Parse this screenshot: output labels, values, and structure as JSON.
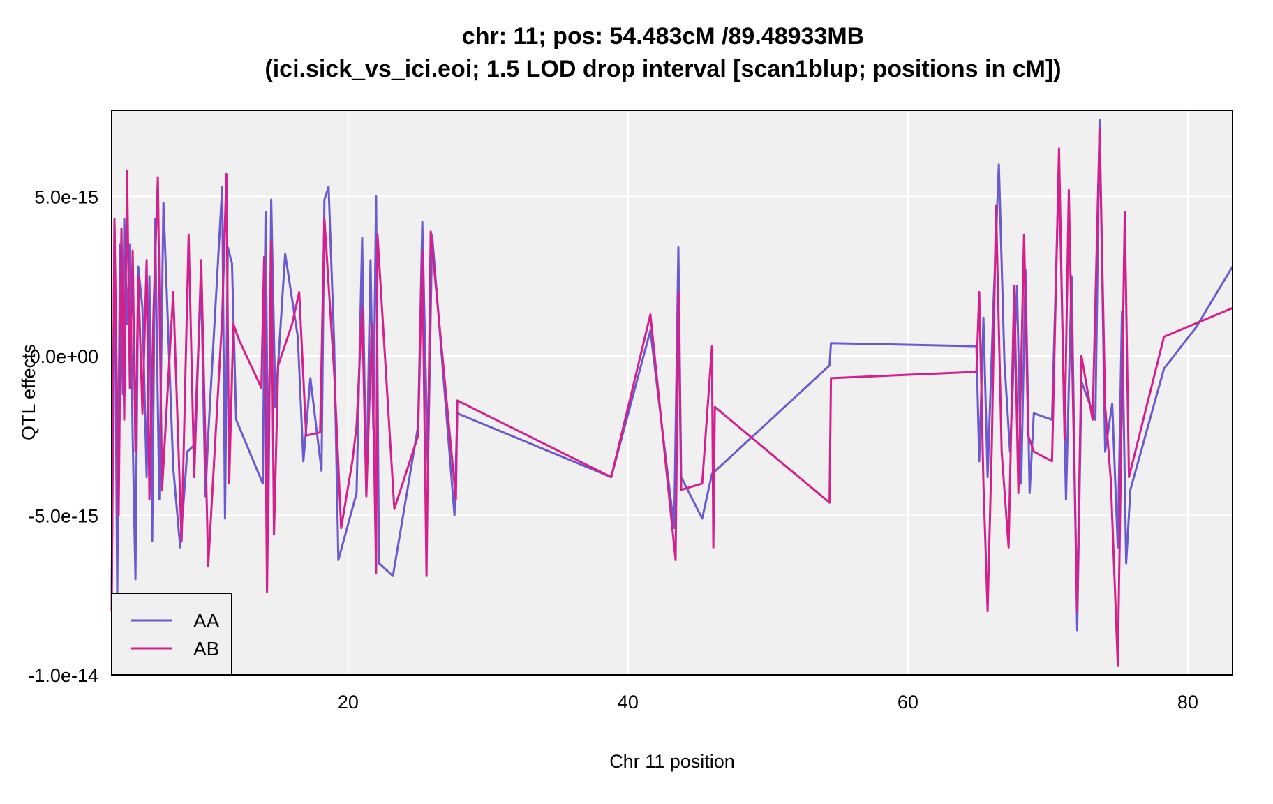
{
  "chart_data": {
    "type": "line",
    "title": "chr: 11; pos: 54.483cM /89.48933MB",
    "subtitle": "(ici.sick_vs_ici.eoi; 1.5 LOD drop interval [scan1blup; positions in cM])",
    "xlabel": "Chr 11 position",
    "ylabel": "QTL effects",
    "xlim": [
      3.1,
      83.2
    ],
    "ylim": [
      -1e-14,
      7.7e-15
    ],
    "x_ticks": [
      20,
      40,
      60,
      80
    ],
    "x_tick_labels": [
      "20",
      "40",
      "60",
      "80"
    ],
    "y_ticks": [
      5e-15,
      0,
      -5e-15,
      -1e-14
    ],
    "y_tick_labels": [
      "5.0e-15",
      "0.0e+00",
      "-5.0e-15",
      "-1.0e-14"
    ],
    "grid": true,
    "background": "#f0f0f0",
    "legend_position": "bottom-left",
    "series": [
      {
        "name": "AA",
        "color": "#6a5acd",
        "points": [
          [
            3.1,
            -7.5e-15
          ],
          [
            3.3,
            4.2e-15
          ],
          [
            3.5,
            -7.5e-15
          ],
          [
            3.7,
            3.5e-15
          ],
          [
            3.9,
            -1.2e-15
          ],
          [
            4.0,
            4.3e-15
          ],
          [
            4.2,
            1e-15
          ],
          [
            4.4,
            3.5e-15
          ],
          [
            4.6,
            -2.5e-15
          ],
          [
            4.8,
            -7e-15
          ],
          [
            5.0,
            2.8e-15
          ],
          [
            5.3,
            1.5e-15
          ],
          [
            5.6,
            -3.8e-15
          ],
          [
            5.8,
            2.5e-15
          ],
          [
            6.0,
            -5.8e-15
          ],
          [
            6.2,
            4.3e-15
          ],
          [
            6.5,
            -4.5e-15
          ],
          [
            6.8,
            4.8e-15
          ],
          [
            7.5,
            -3.5e-15
          ],
          [
            8.0,
            -6e-15
          ],
          [
            8.5,
            -3e-15
          ],
          [
            9.0,
            -2.8e-15
          ],
          [
            9.5,
            2.3e-15
          ],
          [
            9.8,
            -4.4e-15
          ],
          [
            10.0,
            -2.5e-15
          ],
          [
            11.0,
            5.3e-15
          ],
          [
            11.2,
            -5.1e-15
          ],
          [
            11.4,
            3.4e-15
          ],
          [
            11.7,
            2.9e-15
          ],
          [
            12.0,
            -2e-15
          ],
          [
            13.9,
            -4e-15
          ],
          [
            14.1,
            4.5e-15
          ],
          [
            14.3,
            -4.8e-15
          ],
          [
            14.5,
            4.9e-15
          ],
          [
            14.8,
            -1.6e-15
          ],
          [
            15.5,
            3.2e-15
          ],
          [
            16.4,
            6e-16
          ],
          [
            16.8,
            -3.3e-15
          ],
          [
            17.3,
            -7e-16
          ],
          [
            18.1,
            -3.6e-15
          ],
          [
            18.3,
            4.9e-15
          ],
          [
            18.6,
            5.3e-15
          ],
          [
            19.0,
            4e-16
          ],
          [
            19.3,
            -6.4e-15
          ],
          [
            20.6,
            -4.3e-15
          ],
          [
            21.0,
            3.7e-15
          ],
          [
            21.3,
            -4.4e-15
          ],
          [
            21.6,
            3e-15
          ],
          [
            21.8,
            -2.3e-15
          ],
          [
            22.0,
            5e-15
          ],
          [
            22.2,
            -6.5e-15
          ],
          [
            23.2,
            -6.9e-15
          ],
          [
            25.0,
            -2.2e-15
          ],
          [
            25.3,
            4.2e-15
          ],
          [
            25.7,
            -3.6e-15
          ],
          [
            26.0,
            3.8e-15
          ],
          [
            27.6,
            -5e-15
          ],
          [
            27.8,
            -1.8e-15
          ],
          [
            38.8,
            -3.8e-15
          ],
          [
            41.6,
            8e-16
          ],
          [
            43.3,
            -5.4e-15
          ],
          [
            43.6,
            3.4e-15
          ],
          [
            43.8,
            -3.8e-15
          ],
          [
            45.3,
            -5.1e-15
          ],
          [
            46.0,
            -3.7e-15
          ],
          [
            54.4,
            -3e-16
          ],
          [
            54.5,
            4e-16
          ],
          [
            64.9,
            3e-16
          ],
          [
            65.1,
            -3.3e-15
          ],
          [
            65.4,
            1.2e-15
          ],
          [
            65.7,
            -3.8e-15
          ],
          [
            66.1,
            1.4e-15
          ],
          [
            66.5,
            6e-15
          ],
          [
            66.9,
            -2e-16
          ],
          [
            67.3,
            -3e-15
          ],
          [
            67.8,
            2.2e-15
          ],
          [
            68.1,
            -4e-15
          ],
          [
            68.4,
            2.7e-15
          ],
          [
            68.7,
            -4.3e-15
          ],
          [
            69.0,
            -1.8e-15
          ],
          [
            70.3,
            -2e-15
          ],
          [
            70.8,
            6e-15
          ],
          [
            71.3,
            -4.5e-15
          ],
          [
            71.7,
            2.5e-15
          ],
          [
            72.1,
            -8.6e-15
          ],
          [
            72.4,
            -8e-16
          ],
          [
            73.4,
            -2e-15
          ],
          [
            73.7,
            7.4e-15
          ],
          [
            74.1,
            -3e-15
          ],
          [
            74.6,
            -1.5e-15
          ],
          [
            75.0,
            -6e-15
          ],
          [
            75.3,
            1.4e-15
          ],
          [
            75.6,
            -6.5e-15
          ],
          [
            75.9,
            -4.2e-15
          ],
          [
            78.3,
            -4e-16
          ],
          [
            80.6,
            9e-16
          ],
          [
            83.2,
            2.8e-15
          ]
        ]
      },
      {
        "name": "AB",
        "color": "#d41f8c",
        "points": [
          [
            3.1,
            -8e-15
          ],
          [
            3.3,
            4.3e-15
          ],
          [
            3.6,
            -5e-15
          ],
          [
            3.8,
            4e-15
          ],
          [
            4.0,
            -2e-15
          ],
          [
            4.2,
            5.8e-15
          ],
          [
            4.4,
            -1e-15
          ],
          [
            4.6,
            3.3e-15
          ],
          [
            4.8,
            -3e-15
          ],
          [
            5.0,
            2.5e-15
          ],
          [
            5.3,
            -1.8e-15
          ],
          [
            5.6,
            3e-15
          ],
          [
            5.8,
            -4.5e-15
          ],
          [
            6.1,
            1.5e-15
          ],
          [
            6.4,
            5.6e-15
          ],
          [
            6.7,
            -4.2e-15
          ],
          [
            7.5,
            2e-15
          ],
          [
            8.1,
            -5.8e-15
          ],
          [
            8.6,
            3.8e-15
          ],
          [
            9.0,
            -3.8e-15
          ],
          [
            9.5,
            3e-15
          ],
          [
            10.0,
            -6.6e-15
          ],
          [
            11.0,
            1.2e-15
          ],
          [
            11.3,
            5.7e-15
          ],
          [
            11.5,
            -4e-15
          ],
          [
            11.8,
            1e-15
          ],
          [
            12.2,
            5e-16
          ],
          [
            13.8,
            -1e-15
          ],
          [
            14.0,
            3.1e-15
          ],
          [
            14.2,
            -7.4e-15
          ],
          [
            14.5,
            3.6e-15
          ],
          [
            14.7,
            -5.6e-15
          ],
          [
            15.0,
            -3e-16
          ],
          [
            16.0,
            1e-15
          ],
          [
            16.5,
            2e-15
          ],
          [
            17.0,
            -2.5e-15
          ],
          [
            18.0,
            -2.4e-15
          ],
          [
            18.3,
            4.3e-15
          ],
          [
            19.0,
            -5e-16
          ],
          [
            19.5,
            -5.4e-15
          ],
          [
            20.3,
            -3.3e-15
          ],
          [
            20.6,
            -2.2e-15
          ],
          [
            21.0,
            1.5e-15
          ],
          [
            21.3,
            -4.4e-15
          ],
          [
            21.7,
            1e-15
          ],
          [
            22.0,
            -6.8e-15
          ],
          [
            22.1,
            3.8e-15
          ],
          [
            23.3,
            -4.8e-15
          ],
          [
            25.0,
            -2.5e-15
          ],
          [
            25.3,
            3.3e-15
          ],
          [
            25.6,
            -6.9e-15
          ],
          [
            25.9,
            3.9e-15
          ],
          [
            27.7,
            -4.5e-15
          ],
          [
            27.8,
            -1.4e-15
          ],
          [
            38.8,
            -3.8e-15
          ],
          [
            41.6,
            1.3e-15
          ],
          [
            43.4,
            -6.4e-15
          ],
          [
            43.6,
            2e-15
          ],
          [
            43.8,
            -4.2e-15
          ],
          [
            45.3,
            -4e-15
          ],
          [
            46.0,
            3e-16
          ],
          [
            46.1,
            -6e-15
          ],
          [
            46.2,
            -1.6e-15
          ],
          [
            54.4,
            -4.6e-15
          ],
          [
            54.5,
            -7e-16
          ],
          [
            64.9,
            -5e-16
          ],
          [
            65.1,
            2e-15
          ],
          [
            65.4,
            -4e-15
          ],
          [
            65.7,
            -8e-15
          ],
          [
            66.0,
            -2.8e-15
          ],
          [
            66.3,
            4.7e-15
          ],
          [
            66.7,
            -3e-15
          ],
          [
            67.2,
            -6e-15
          ],
          [
            67.6,
            2.2e-15
          ],
          [
            67.9,
            -4.3e-15
          ],
          [
            68.3,
            3.8e-15
          ],
          [
            68.6,
            -2.5e-15
          ],
          [
            69.0,
            -3e-15
          ],
          [
            70.3,
            -3.3e-15
          ],
          [
            70.8,
            6.5e-15
          ],
          [
            71.2,
            -2.6e-15
          ],
          [
            71.5,
            5.2e-15
          ],
          [
            72.1,
            -8e-15
          ],
          [
            72.4,
            0.0
          ],
          [
            73.2,
            -2e-15
          ],
          [
            73.7,
            7.1e-15
          ],
          [
            74.1,
            -1.6e-15
          ],
          [
            74.5,
            -3.9e-15
          ],
          [
            75.0,
            -9.7e-15
          ],
          [
            75.5,
            4.5e-15
          ],
          [
            75.8,
            -3.8e-15
          ],
          [
            78.3,
            6e-16
          ],
          [
            83.2,
            1.5e-15
          ]
        ]
      }
    ]
  }
}
